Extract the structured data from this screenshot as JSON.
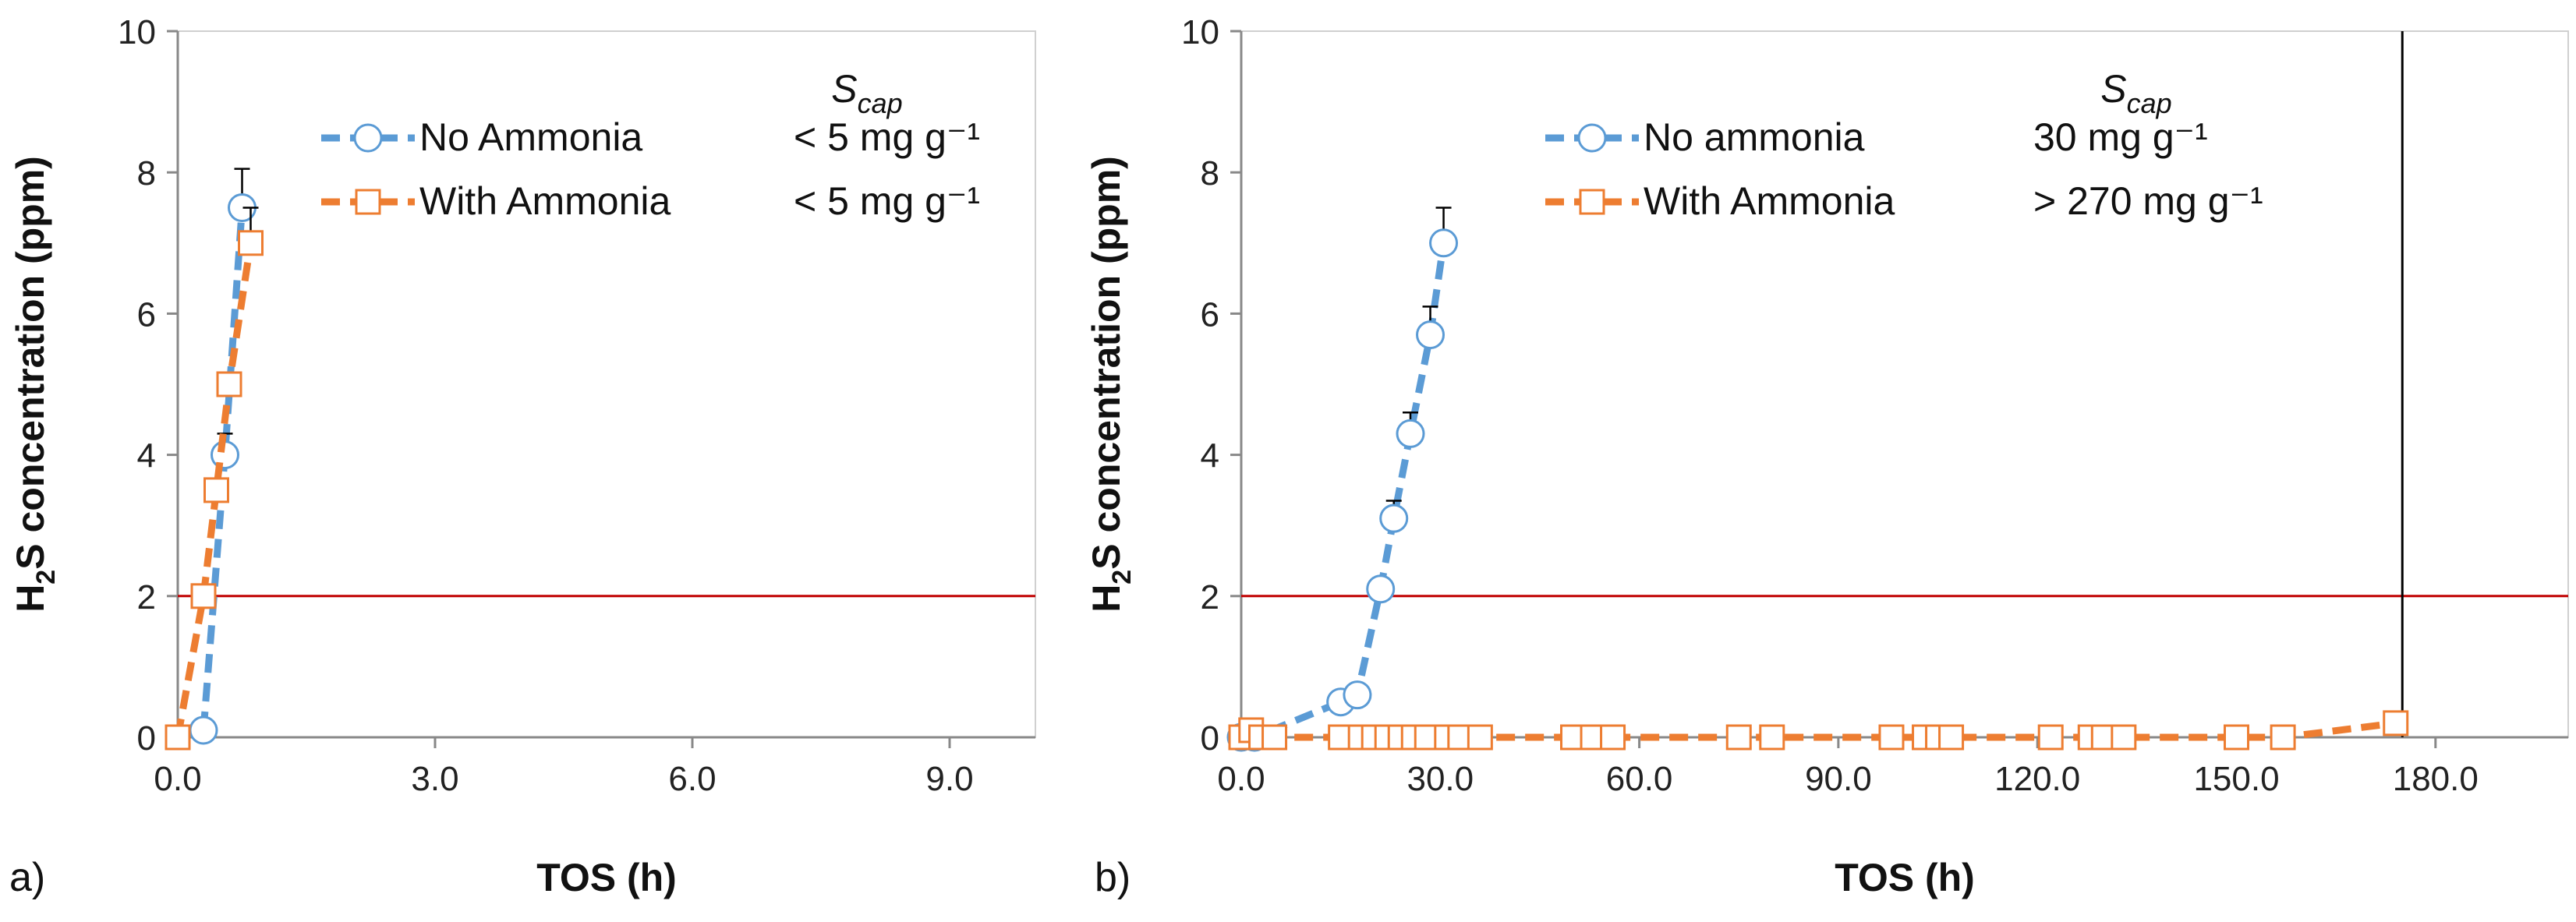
{
  "colors": {
    "no_ammonia": "#5B9BD5",
    "with_ammonia": "#ED7D31",
    "threshold": "#C00000",
    "marker_fill": "#ffffff",
    "axis": "#888888",
    "error_bar": "#000000"
  },
  "chart_data": [
    {
      "panel_label": "a)",
      "type": "line",
      "xlabel": "TOS (h)",
      "ylabel_parts": [
        "H",
        "2",
        "S  concentration  (ppm)"
      ],
      "xlim": [
        0,
        10
      ],
      "ylim": [
        0,
        10
      ],
      "xticks": [
        0,
        3,
        6,
        9
      ],
      "xtick_labels": [
        "0.0",
        "3.0",
        "6.0",
        "9.0"
      ],
      "yticks": [
        0,
        2,
        4,
        6,
        8,
        10
      ],
      "ytick_labels": [
        "0",
        "2",
        "4",
        "6",
        "8",
        "10"
      ],
      "threshold_y": 2,
      "vline_x": null,
      "legend_header": {
        "base": "S",
        "sub": "cap"
      },
      "series": [
        {
          "name": "No Ammonia",
          "marker": "circle",
          "scap": "< 5 mg g⁻¹",
          "x": [
            0.3,
            0.55,
            0.75
          ],
          "y": [
            0.1,
            4.0,
            7.5
          ],
          "err": [
            0,
            0.3,
            0.55
          ]
        },
        {
          "name": "With Ammonia",
          "marker": "square",
          "scap": "< 5 mg g⁻¹",
          "x": [
            0.0,
            0.3,
            0.45,
            0.6,
            0.85
          ],
          "y": [
            0.0,
            2.0,
            3.5,
            5.0,
            7.0
          ],
          "err": [
            0,
            0,
            0,
            0,
            0.5
          ]
        }
      ]
    },
    {
      "panel_label": "b)",
      "type": "line",
      "xlabel": "TOS (h)",
      "ylabel_parts": [
        "H",
        "2",
        "S  concentration (ppm)"
      ],
      "xlim": [
        0,
        200
      ],
      "ylim": [
        0,
        10
      ],
      "xticks": [
        0,
        30,
        60,
        90,
        120,
        150,
        180
      ],
      "xtick_labels": [
        "0.0",
        "30.0",
        "60.0",
        "90.0",
        "120.0",
        "150.0",
        "180.0"
      ],
      "yticks": [
        0,
        2,
        4,
        6,
        8,
        10
      ],
      "ytick_labels": [
        "0",
        "2",
        "4",
        "6",
        "8",
        "10"
      ],
      "threshold_y": 2,
      "vline_x": 175,
      "legend_header": {
        "base": "S",
        "sub": "cap"
      },
      "series": [
        {
          "name": "No ammonia",
          "marker": "circle",
          "scap": "30 mg g⁻¹",
          "x": [
            0,
            2,
            15,
            17.5,
            21,
            23,
            25.5,
            28.5,
            30.5
          ],
          "y": [
            0,
            0,
            0.5,
            0.6,
            2.1,
            3.1,
            4.3,
            5.7,
            7.0
          ],
          "err": [
            0,
            0,
            0,
            0,
            0.1,
            0.25,
            0.3,
            0.4,
            0.5
          ]
        },
        {
          "name": "With Ammonia",
          "marker": "square",
          "scap": "> 270 mg g⁻¹",
          "x": [
            0,
            1.5,
            3,
            5,
            15,
            18,
            20,
            22,
            24,
            26,
            28,
            31,
            33,
            36,
            50,
            53,
            56,
            75,
            80,
            98,
            103,
            105,
            107,
            122,
            128,
            130,
            133,
            150,
            157,
            174
          ],
          "y": [
            0,
            0.1,
            0,
            0,
            0,
            0,
            0,
            0,
            0,
            0,
            0,
            0,
            0,
            0,
            0,
            0,
            0,
            0,
            0,
            0,
            0,
            0,
            0,
            0,
            0,
            0,
            0,
            0,
            0,
            0.2
          ],
          "err": [
            0,
            0,
            0,
            0,
            0,
            0,
            0,
            0,
            0,
            0,
            0,
            0,
            0,
            0,
            0,
            0,
            0,
            0,
            0,
            0,
            0,
            0,
            0,
            0,
            0,
            0,
            0,
            0,
            0,
            0
          ]
        }
      ]
    }
  ]
}
